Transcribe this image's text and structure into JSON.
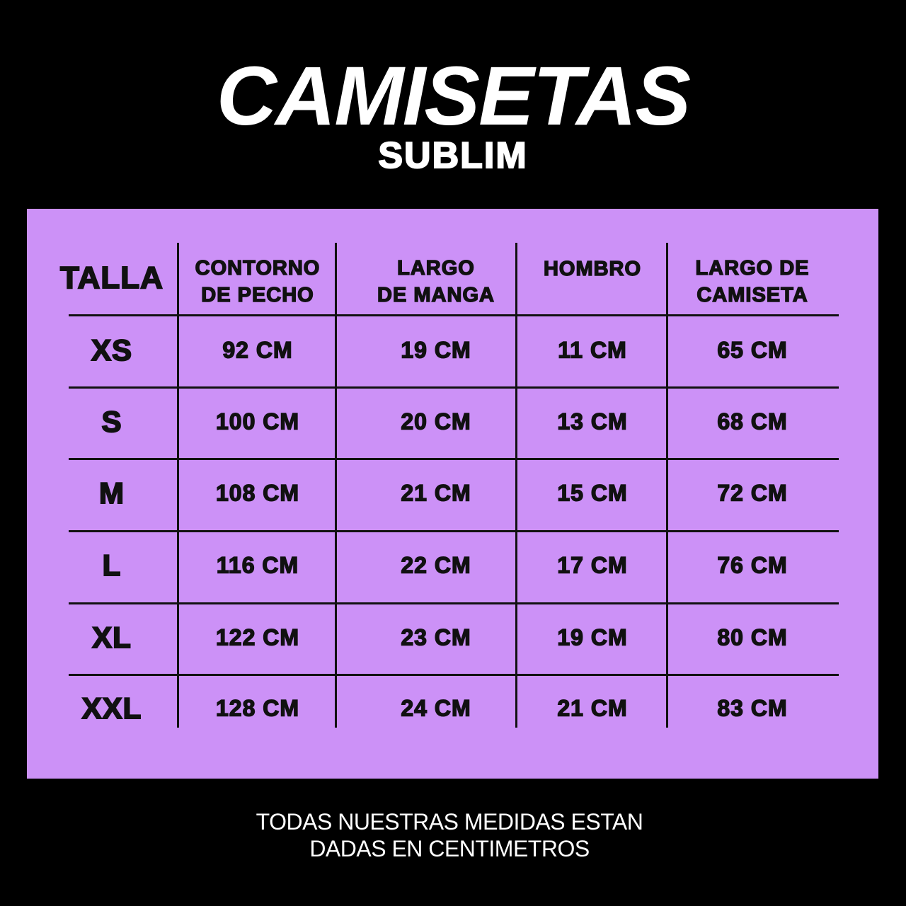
{
  "title": "CAMISETAS",
  "subtitle": "SUBLIM",
  "colors": {
    "background": "#000000",
    "panel": "#cc91f7",
    "text": "#111111"
  },
  "table": {
    "headers": [
      "TALLA",
      "CONTORNO DE PECHO",
      "LARGO DE MANGA",
      "HOMBRO",
      "LARGO DE CAMISETA"
    ],
    "header_lines": [
      [
        "TALLA"
      ],
      [
        "CONTORNO",
        "DE PECHO"
      ],
      [
        "LARGO",
        "DE MANGA"
      ],
      [
        "HOMBRO"
      ],
      [
        "LARGO DE",
        "CAMISETA"
      ]
    ],
    "rows": [
      [
        "XS",
        "92 CM",
        "19 CM",
        "11 CM",
        "65 CM"
      ],
      [
        "S",
        "100 CM",
        "20 CM",
        "13 CM",
        "68 CM"
      ],
      [
        "M",
        "108 CM",
        "21 CM",
        "15 CM",
        "72 CM"
      ],
      [
        "L",
        "116 CM",
        "22 CM",
        "17 CM",
        "76 CM"
      ],
      [
        "XL",
        "122 CM",
        "23 CM",
        "19 CM",
        "80 CM"
      ],
      [
        "XXL",
        "128 CM",
        "24 CM",
        "21 CM",
        "83 CM"
      ]
    ]
  },
  "footer": {
    "line1": "TODAS NUESTRAS MEDIDAS ESTAN",
    "line2": "DADAS EN CENTIMETROS"
  }
}
